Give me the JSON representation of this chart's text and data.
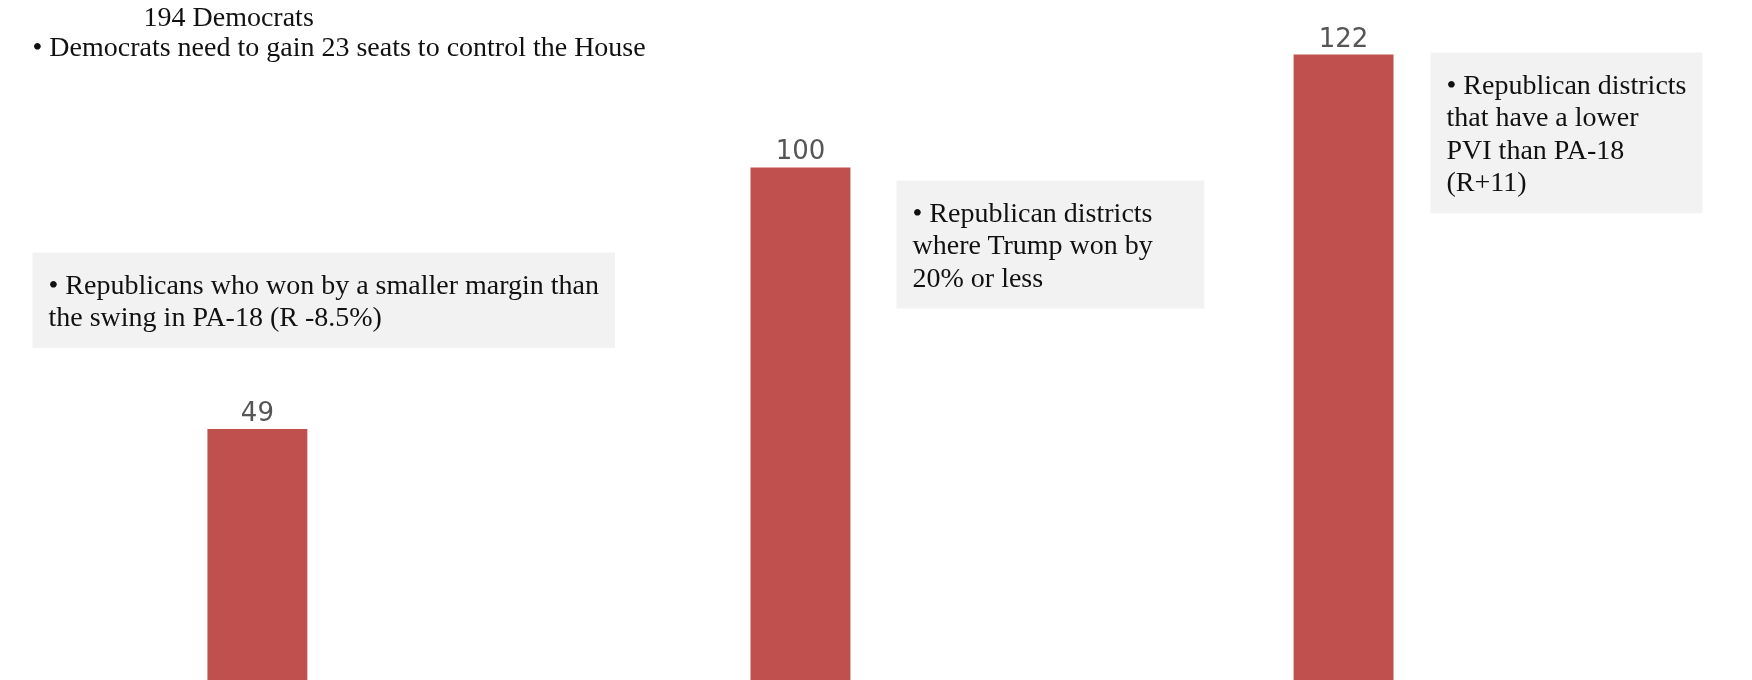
{
  "chart_data": {
    "type": "bar",
    "categories": [
      null,
      null,
      null
    ],
    "values": [
      49,
      100,
      122
    ],
    "color": "#c0504d",
    "data_labels": true,
    "grid": false,
    "tick_labels": false,
    "annotations": [
      "194 Democrats",
      "• Democrats need to gain 23 seats to control the House",
      "• Republicans who won by a smaller margin than the swing in PA-18 (R -8.5%)",
      "• Republican districts where Trump won by 20% or less",
      "• Republican districts that have a lower PVI than PA-18 (R+11)"
    ]
  }
}
